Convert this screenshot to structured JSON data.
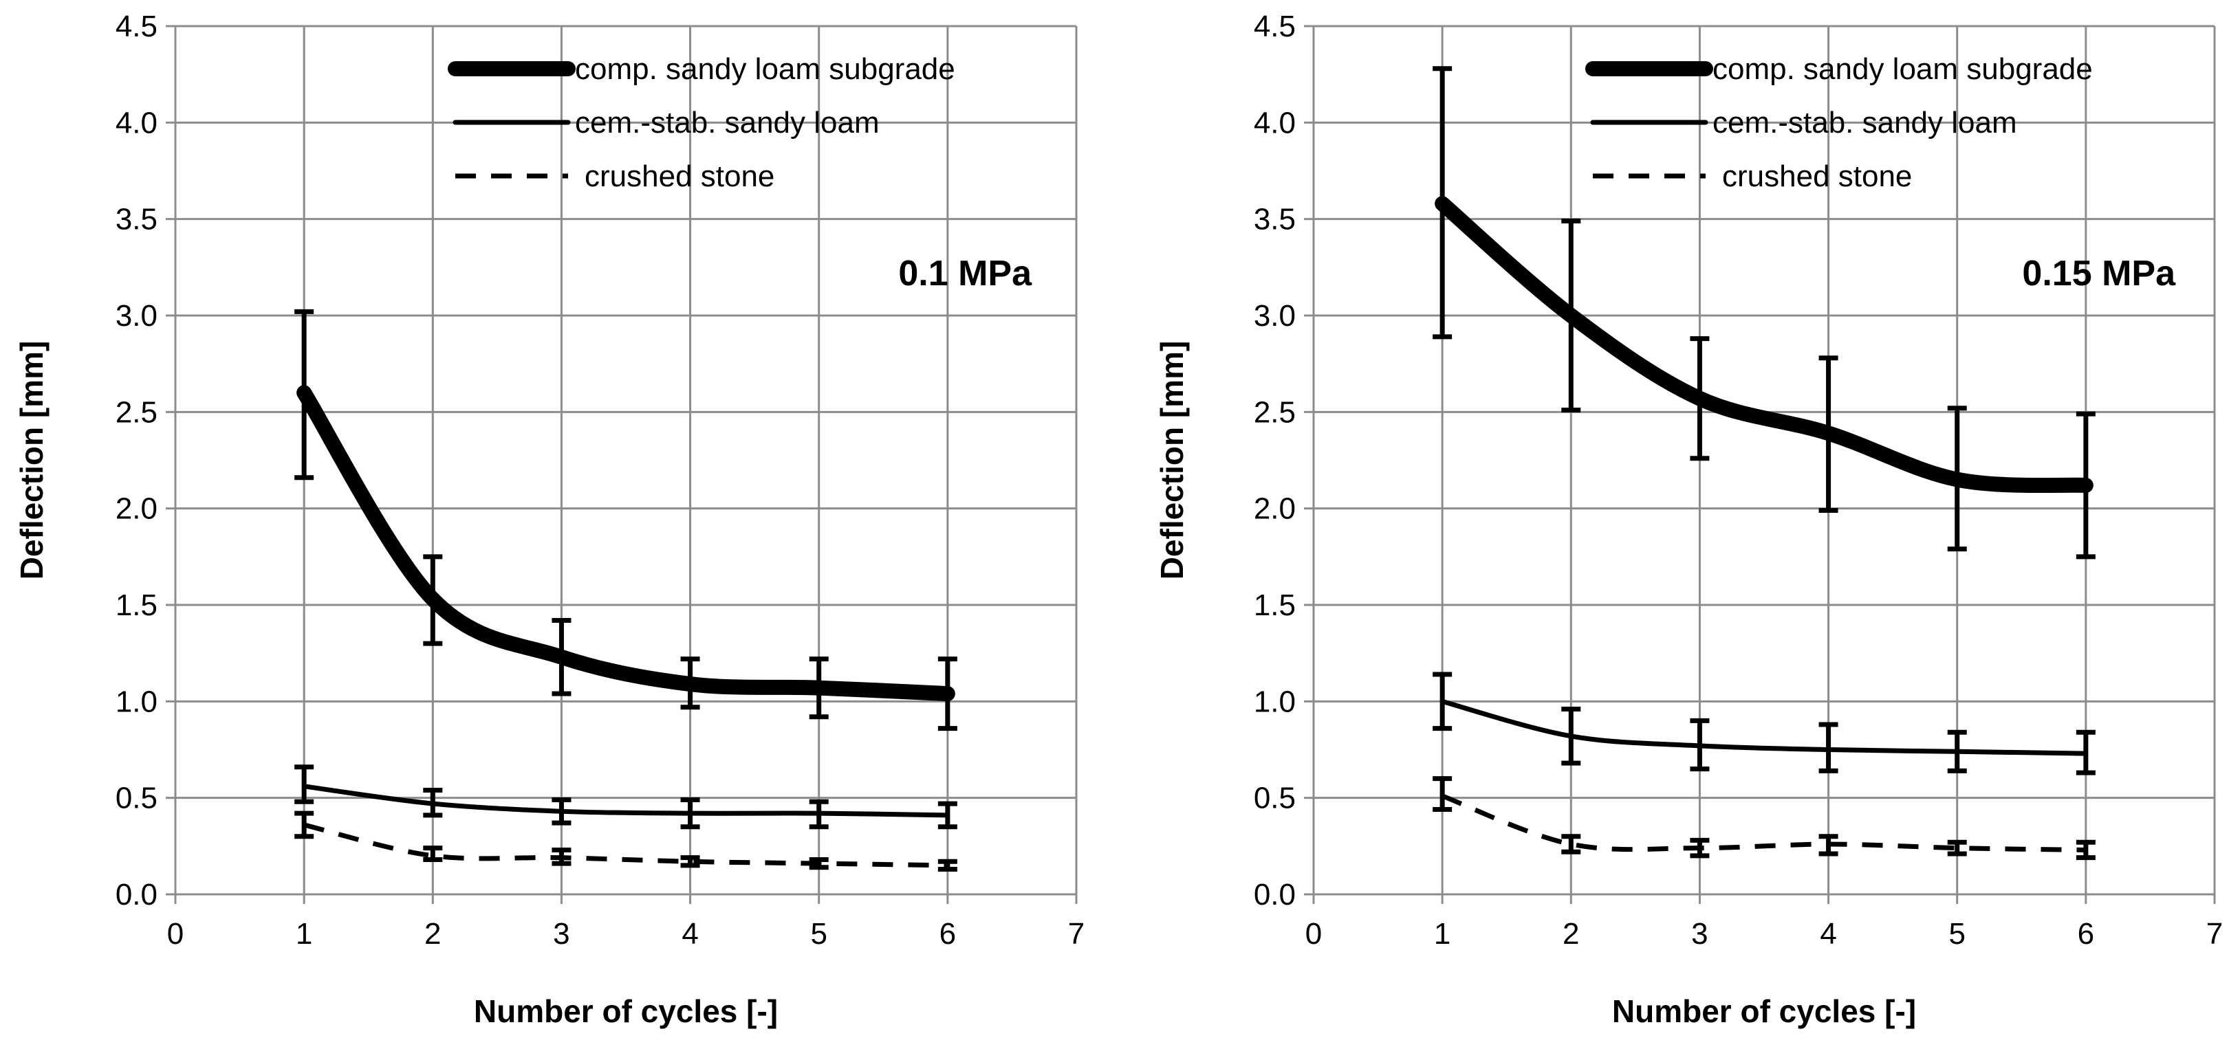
{
  "chart_data": [
    {
      "type": "line",
      "annotation": "0.1 MPa",
      "xlabel": "Number of cycles [-]",
      "ylabel": "Deflection [mm]",
      "xlim": [
        0,
        7
      ],
      "ylim": [
        0,
        4.5
      ],
      "x_ticks": [
        "0",
        "1",
        "2",
        "3",
        "4",
        "5",
        "6",
        "7"
      ],
      "y_ticks": [
        "0.0",
        "0.5",
        "1.0",
        "1.5",
        "2.0",
        "2.5",
        "3.0",
        "3.5",
        "4.0",
        "4.5"
      ],
      "grid": true,
      "legend_position": "top-right",
      "x": [
        1,
        2,
        3,
        4,
        5,
        6
      ],
      "series": [
        {
          "name": "comp. sandy loam subgrade",
          "style": "thick",
          "values": [
            2.6,
            1.53,
            1.23,
            1.09,
            1.07,
            1.04
          ],
          "err_low": [
            2.16,
            1.3,
            1.04,
            0.97,
            0.92,
            0.86
          ],
          "err_high": [
            3.02,
            1.75,
            1.42,
            1.22,
            1.22,
            1.22
          ]
        },
        {
          "name": "cem.-stab. sandy loam",
          "style": "solid",
          "values": [
            0.56,
            0.47,
            0.43,
            0.42,
            0.42,
            0.41
          ],
          "err_low": [
            0.48,
            0.41,
            0.37,
            0.35,
            0.35,
            0.35
          ],
          "err_high": [
            0.66,
            0.54,
            0.49,
            0.49,
            0.48,
            0.47
          ]
        },
        {
          "name": "crushed stone",
          "style": "dashed",
          "values": [
            0.36,
            0.2,
            0.19,
            0.17,
            0.16,
            0.15
          ],
          "err_low": [
            0.3,
            0.18,
            0.16,
            0.15,
            0.14,
            0.13
          ],
          "err_high": [
            0.42,
            0.24,
            0.23,
            0.19,
            0.18,
            0.17
          ]
        }
      ]
    },
    {
      "type": "line",
      "annotation": "0.15 MPa",
      "xlabel": "Number of cycles [-]",
      "ylabel": "Deflection [mm]",
      "xlim": [
        0,
        7
      ],
      "ylim": [
        0,
        4.5
      ],
      "x_ticks": [
        "0",
        "1",
        "2",
        "3",
        "4",
        "5",
        "6",
        "7"
      ],
      "y_ticks": [
        "0.0",
        "0.5",
        "1.0",
        "1.5",
        "2.0",
        "2.5",
        "3.0",
        "3.5",
        "4.0",
        "4.5"
      ],
      "grid": true,
      "legend_position": "top-right",
      "x": [
        1,
        2,
        3,
        4,
        5,
        6
      ],
      "series": [
        {
          "name": "comp. sandy loam subgrade",
          "style": "thick",
          "values": [
            3.58,
            3.0,
            2.57,
            2.39,
            2.15,
            2.12
          ],
          "err_low": [
            2.89,
            2.51,
            2.26,
            1.99,
            1.79,
            1.75
          ],
          "err_high": [
            4.28,
            3.49,
            2.88,
            2.78,
            2.52,
            2.49
          ]
        },
        {
          "name": "cem.-stab. sandy loam",
          "style": "solid",
          "values": [
            1.0,
            0.82,
            0.77,
            0.75,
            0.74,
            0.73
          ],
          "err_low": [
            0.86,
            0.68,
            0.65,
            0.64,
            0.64,
            0.63
          ],
          "err_high": [
            1.14,
            0.96,
            0.9,
            0.88,
            0.84,
            0.84
          ]
        },
        {
          "name": "crushed stone",
          "style": "dashed",
          "values": [
            0.51,
            0.26,
            0.24,
            0.26,
            0.24,
            0.23
          ],
          "err_low": [
            0.44,
            0.22,
            0.2,
            0.21,
            0.21,
            0.19
          ],
          "err_high": [
            0.6,
            0.3,
            0.28,
            0.3,
            0.27,
            0.27
          ]
        }
      ]
    }
  ]
}
